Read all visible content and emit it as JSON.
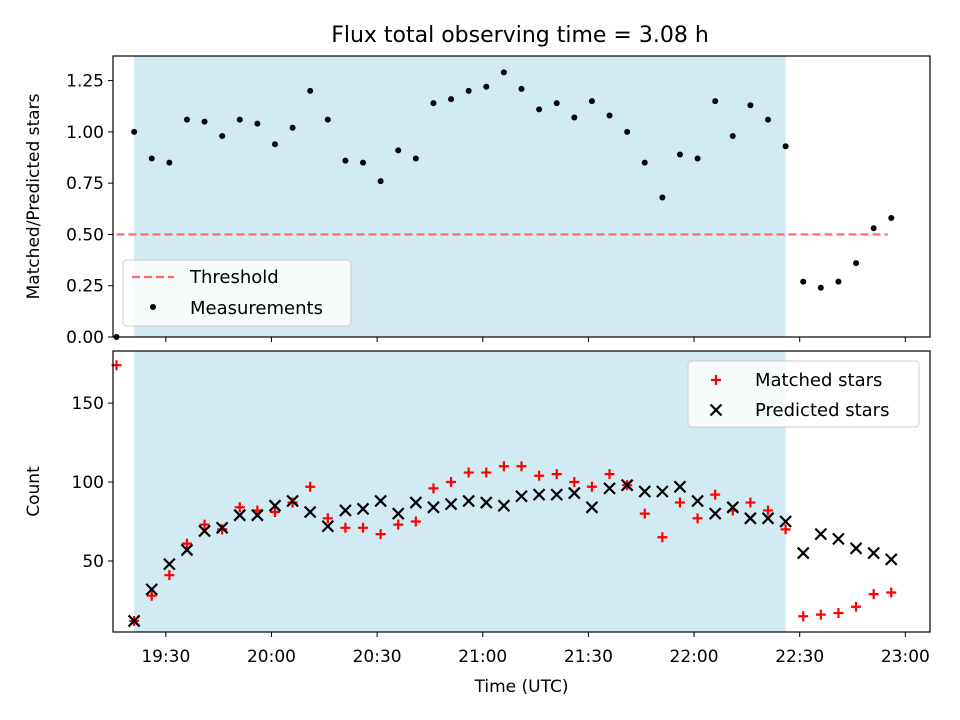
{
  "title": "Flux total observing time = 3.08 h",
  "colors": {
    "span": "#add8e6",
    "threshold": "#ff6666",
    "measurements": "#000000",
    "matched": "#ff0000",
    "predicted": "#000000"
  },
  "chart_data": [
    {
      "type": "scatter",
      "ylabel": "Matched/Predicted stars",
      "ylim": [
        0,
        1.37
      ],
      "yticks": [
        0.0,
        0.25,
        0.5,
        0.75,
        1.0,
        1.25
      ],
      "ytick_labels": [
        "0.00",
        "0.25",
        "0.50",
        "0.75",
        "1.00",
        "1.25"
      ],
      "xlim": [
        "19:15",
        "23:07"
      ],
      "observing_span": [
        "19:21",
        "22:26"
      ],
      "threshold": {
        "y": 0.5,
        "x": [
          "19:16",
          "22:55"
        ]
      },
      "legend": {
        "location": "lower left",
        "entries": [
          "Threshold",
          "Measurements"
        ]
      },
      "series": [
        {
          "name": "Measurements",
          "marker": "dot",
          "x": [
            "19:16",
            "19:21",
            "19:26",
            "19:31",
            "19:36",
            "19:41",
            "19:46",
            "19:51",
            "19:56",
            "20:01",
            "20:06",
            "20:11",
            "20:16",
            "20:21",
            "20:26",
            "20:31",
            "20:36",
            "20:41",
            "20:46",
            "20:51",
            "20:56",
            "21:01",
            "21:06",
            "21:11",
            "21:16",
            "21:21",
            "21:26",
            "21:31",
            "21:36",
            "21:41",
            "21:46",
            "21:51",
            "21:56",
            "22:01",
            "22:06",
            "22:11",
            "22:16",
            "22:21",
            "22:26",
            "22:31",
            "22:36",
            "22:41",
            "22:46",
            "22:51",
            "22:56"
          ],
          "y": [
            0.0,
            1.0,
            0.87,
            0.85,
            1.06,
            1.05,
            0.98,
            1.06,
            1.04,
            0.94,
            1.02,
            1.2,
            1.06,
            0.86,
            0.85,
            0.76,
            0.91,
            0.87,
            1.14,
            1.16,
            1.2,
            1.22,
            1.29,
            1.21,
            1.11,
            1.14,
            1.07,
            1.15,
            1.08,
            1.0,
            0.85,
            0.68,
            0.89,
            0.87,
            1.15,
            0.98,
            1.13,
            1.06,
            0.93,
            0.27,
            0.24,
            0.27,
            0.36,
            0.53,
            0.58
          ]
        }
      ]
    },
    {
      "type": "scatter",
      "ylabel": "Count",
      "xlabel": "Time (UTC)",
      "ylim": [
        5,
        183
      ],
      "yticks": [
        50,
        100,
        150
      ],
      "ytick_labels": [
        "50",
        "100",
        "150"
      ],
      "xlim": [
        "19:15",
        "23:07"
      ],
      "xticks": [
        "19:30",
        "20:00",
        "20:30",
        "21:00",
        "21:30",
        "22:00",
        "22:30",
        "23:00"
      ],
      "observing_span": [
        "19:21",
        "22:26"
      ],
      "legend": {
        "location": "upper right",
        "entries": [
          "Matched stars",
          "Predicted stars"
        ]
      },
      "series": [
        {
          "name": "Matched stars",
          "marker": "plus",
          "x": [
            "19:16",
            "19:21",
            "19:26",
            "19:31",
            "19:36",
            "19:41",
            "19:46",
            "19:51",
            "19:56",
            "20:01",
            "20:06",
            "20:11",
            "20:16",
            "20:21",
            "20:26",
            "20:31",
            "20:36",
            "20:41",
            "20:46",
            "20:51",
            "20:56",
            "21:01",
            "21:06",
            "21:11",
            "21:16",
            "21:21",
            "21:26",
            "21:31",
            "21:36",
            "21:41",
            "21:46",
            "21:51",
            "21:56",
            "22:01",
            "22:06",
            "22:11",
            "22:16",
            "22:21",
            "22:26",
            "22:31",
            "22:36",
            "22:41",
            "22:46",
            "22:51",
            "22:56"
          ],
          "y": [
            174,
            12,
            28,
            41,
            61,
            73,
            70,
            84,
            82,
            81,
            87,
            97,
            77,
            71,
            71,
            67,
            73,
            75,
            96,
            100,
            106,
            106,
            110,
            110,
            104,
            105,
            100,
            97,
            105,
            98,
            80,
            65,
            87,
            77,
            92,
            82,
            87,
            82,
            70,
            15,
            16,
            17,
            21,
            29,
            30
          ]
        },
        {
          "name": "Predicted stars",
          "marker": "x",
          "x": [
            "19:21",
            "19:26",
            "19:31",
            "19:36",
            "19:41",
            "19:46",
            "19:51",
            "19:56",
            "20:01",
            "20:06",
            "20:11",
            "20:16",
            "20:21",
            "20:26",
            "20:31",
            "20:36",
            "20:41",
            "20:46",
            "20:51",
            "20:56",
            "21:01",
            "21:06",
            "21:11",
            "21:16",
            "21:21",
            "21:26",
            "21:31",
            "21:36",
            "21:41",
            "21:46",
            "21:51",
            "21:56",
            "22:01",
            "22:06",
            "22:11",
            "22:16",
            "22:21",
            "22:26",
            "22:31",
            "22:36",
            "22:41",
            "22:46",
            "22:51",
            "22:56"
          ],
          "y": [
            12,
            32,
            48,
            57,
            69,
            71,
            79,
            79,
            85,
            88,
            81,
            72,
            82,
            83,
            88,
            80,
            87,
            84,
            86,
            88,
            87,
            85,
            91,
            92,
            92,
            93,
            84,
            96,
            98,
            94,
            94,
            97,
            88,
            80,
            84,
            77,
            77,
            75,
            55,
            67,
            64,
            58,
            55,
            51
          ]
        }
      ]
    }
  ]
}
